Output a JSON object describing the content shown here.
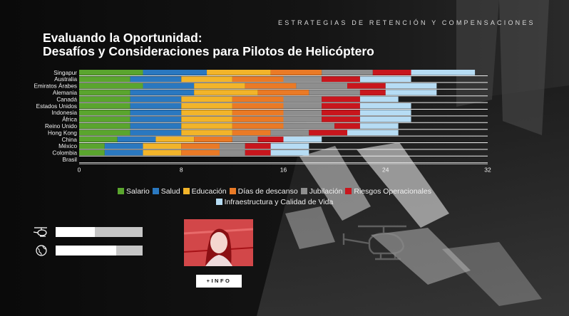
{
  "header": {
    "eyebrow": "ESTRATEGIAS DE RETENCIÓN Y COMPENSACIONES",
    "title_line1": "Evaluando la Oportunidad:",
    "title_line2": "Desafíos y Consideraciones para Pilotos de Helicóptero"
  },
  "colors": {
    "background": "#0c0c0c",
    "Salario": "#5aa52e",
    "Salud": "#2a78c0",
    "Educación": "#f2b42a",
    "Días de descanso": "#ea7a26",
    "Jubilación": "#8e8e8e",
    "Riesgos Operacionales": "#c8161d",
    "Infraestructura y Calidad de Vida": "#b6dcf4"
  },
  "chart_data": {
    "type": "bar",
    "orientation": "horizontal",
    "stacked": true,
    "categories": [
      "Singapur",
      "Australia",
      "Emiratos Árabes",
      "Alemania",
      "Canadá",
      "Estados Unidos",
      "Indonesia",
      "África",
      "Reino Unido",
      "Hong Kong",
      "China",
      "México",
      "Colombia",
      "Brasil"
    ],
    "series": [
      {
        "name": "Salario",
        "values": [
          5,
          4,
          5,
          4,
          4,
          4,
          4,
          4,
          4,
          4,
          3,
          2,
          2,
          0
        ]
      },
      {
        "name": "Salud",
        "values": [
          5,
          4,
          4,
          5,
          4,
          4,
          4,
          4,
          4,
          4,
          3,
          3,
          3,
          0
        ]
      },
      {
        "name": "Educación",
        "values": [
          5,
          4,
          4,
          5,
          4,
          4,
          4,
          4,
          4,
          4,
          3,
          3,
          3,
          0
        ]
      },
      {
        "name": "Días de descanso",
        "values": [
          4,
          4,
          4,
          4,
          4,
          4,
          4,
          4,
          4,
          3,
          3,
          3,
          3,
          0
        ]
      },
      {
        "name": "Jubilación",
        "values": [
          4,
          3,
          4,
          4,
          3,
          3,
          3,
          3,
          4,
          3,
          2,
          2,
          2,
          0
        ]
      },
      {
        "name": "Riesgos Operacionales",
        "values": [
          3,
          3,
          3,
          2,
          3,
          3,
          3,
          3,
          2,
          3,
          2,
          2,
          2,
          0
        ]
      },
      {
        "name": "Infraestructura y Calidad de Vida",
        "values": [
          5,
          4,
          4,
          4,
          3,
          4,
          4,
          4,
          3,
          4,
          3,
          3,
          3,
          0
        ]
      }
    ],
    "xlim": [
      0,
      32
    ],
    "xticks": [
      "0",
      "8",
      "16",
      "24",
      "32"
    ],
    "grid": true,
    "legend_position": "bottom"
  },
  "stats": [
    {
      "icon": "helicopter-icon",
      "value": 0.45
    },
    {
      "icon": "globe-icon",
      "value": 0.7
    }
  ],
  "info_button": "+INFO"
}
